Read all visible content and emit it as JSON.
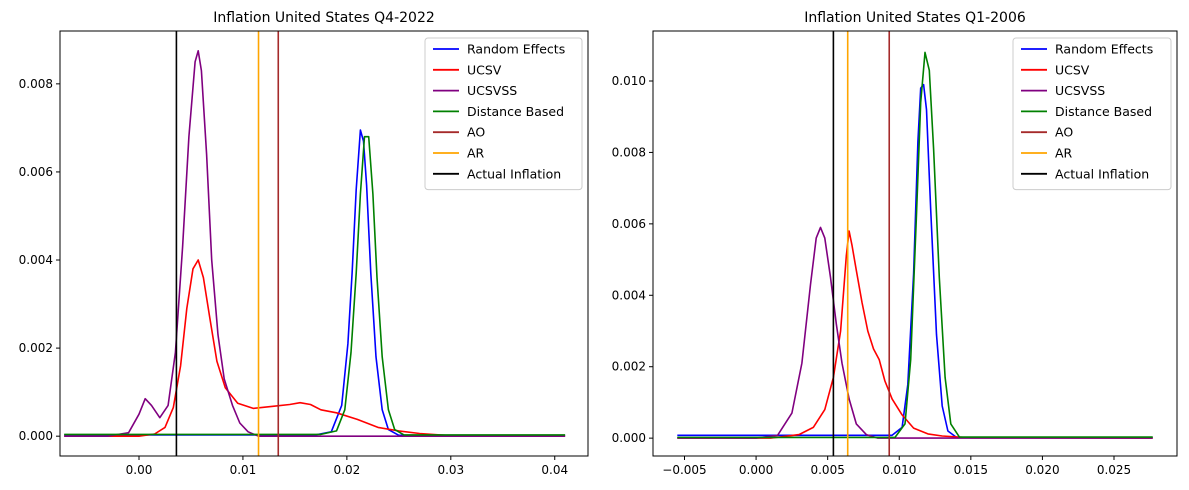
{
  "chart_data": [
    {
      "type": "line",
      "title": "Inflation United States Q4-2022",
      "xlim": [
        -0.0076,
        0.0432
      ],
      "ylim": [
        -0.00045,
        0.0092
      ],
      "xticks": [
        0.0,
        0.01,
        0.02,
        0.03,
        0.04
      ],
      "xtick_labels": [
        "0.00",
        "0.01",
        "0.02",
        "0.03",
        "0.04"
      ],
      "yticks": [
        0.0,
        0.002,
        0.004,
        0.006,
        0.008
      ],
      "ytick_labels": [
        "0.000",
        "0.002",
        "0.004",
        "0.006",
        "0.008"
      ],
      "legend_position": "top-right",
      "grid": false,
      "series": [
        {
          "name": "Random Effects",
          "color": "#0000ff",
          "points": [
            [
              -0.0072,
              3e-05
            ],
            [
              0.017,
              3e-05
            ],
            [
              0.0185,
              0.0001
            ],
            [
              0.0195,
              0.0007
            ],
            [
              0.0201,
              0.0021
            ],
            [
              0.0205,
              0.0037
            ],
            [
              0.0209,
              0.0056
            ],
            [
              0.0213,
              0.00695
            ],
            [
              0.0216,
              0.0067
            ],
            [
              0.0219,
              0.0057
            ],
            [
              0.0223,
              0.0037
            ],
            [
              0.0228,
              0.0018
            ],
            [
              0.0234,
              0.0006
            ],
            [
              0.024,
              0.00015
            ],
            [
              0.025,
              2e-05
            ],
            [
              0.041,
              2e-05
            ]
          ]
        },
        {
          "name": "UCSV",
          "color": "#ff0000",
          "points": [
            [
              -0.0072,
              0.0
            ],
            [
              0.0,
              0.0
            ],
            [
              0.0015,
              5e-05
            ],
            [
              0.0025,
              0.0002
            ],
            [
              0.0033,
              0.00065
            ],
            [
              0.004,
              0.0016
            ],
            [
              0.0046,
              0.0029
            ],
            [
              0.0052,
              0.0038
            ],
            [
              0.0057,
              0.004
            ],
            [
              0.0062,
              0.0036
            ],
            [
              0.0068,
              0.0027
            ],
            [
              0.0075,
              0.0017
            ],
            [
              0.0083,
              0.0011
            ],
            [
              0.0095,
              0.00075
            ],
            [
              0.011,
              0.00063
            ],
            [
              0.013,
              0.00068
            ],
            [
              0.0145,
              0.00072
            ],
            [
              0.0155,
              0.00076
            ],
            [
              0.0165,
              0.00072
            ],
            [
              0.0175,
              0.0006
            ],
            [
              0.019,
              0.00053
            ],
            [
              0.021,
              0.00038
            ],
            [
              0.023,
              0.0002
            ],
            [
              0.025,
              0.00012
            ],
            [
              0.027,
              6e-05
            ],
            [
              0.03,
              1e-05
            ],
            [
              0.041,
              0.0
            ]
          ]
        },
        {
          "name": "UCSVSS",
          "color": "#800080",
          "points": [
            [
              -0.0072,
              0.0
            ],
            [
              -0.003,
              0.0
            ],
            [
              -0.001,
              8e-05
            ],
            [
              0.0,
              0.0005
            ],
            [
              0.0006,
              0.00085
            ],
            [
              0.0012,
              0.0007
            ],
            [
              0.002,
              0.00042
            ],
            [
              0.0028,
              0.0007
            ],
            [
              0.0035,
              0.0019
            ],
            [
              0.0042,
              0.0043
            ],
            [
              0.0048,
              0.0068
            ],
            [
              0.0054,
              0.0085
            ],
            [
              0.0057,
              0.00875
            ],
            [
              0.006,
              0.0083
            ],
            [
              0.0065,
              0.0064
            ],
            [
              0.007,
              0.004
            ],
            [
              0.0076,
              0.0023
            ],
            [
              0.0082,
              0.0013
            ],
            [
              0.009,
              0.0007
            ],
            [
              0.0097,
              0.0003
            ],
            [
              0.0105,
              0.0001
            ],
            [
              0.0115,
              0.0
            ],
            [
              0.041,
              0.0
            ]
          ]
        },
        {
          "name": "Distance Based",
          "color": "#008000",
          "points": [
            [
              -0.0072,
              4e-05
            ],
            [
              0.0175,
              4e-05
            ],
            [
              0.019,
              0.00012
            ],
            [
              0.0198,
              0.0006
            ],
            [
              0.0204,
              0.0019
            ],
            [
              0.0209,
              0.0037
            ],
            [
              0.0213,
              0.0055
            ],
            [
              0.0217,
              0.0068
            ],
            [
              0.0221,
              0.0068
            ],
            [
              0.0225,
              0.0055
            ],
            [
              0.0229,
              0.0036
            ],
            [
              0.0234,
              0.0018
            ],
            [
              0.024,
              0.0006
            ],
            [
              0.0246,
              0.00015
            ],
            [
              0.0255,
              3e-05
            ],
            [
              0.041,
              3e-05
            ]
          ]
        },
        {
          "name": "AO",
          "color": "#a52a2a",
          "vline": 0.0134
        },
        {
          "name": "AR",
          "color": "#ffa500",
          "vline": 0.0115
        },
        {
          "name": "Actual Inflation",
          "color": "#000000",
          "vline": 0.0036
        }
      ]
    },
    {
      "type": "line",
      "title": "Inflation United States Q1-2006",
      "xlim": [
        -0.0072,
        0.0294
      ],
      "ylim": [
        -0.0005,
        0.0114
      ],
      "xticks": [
        -0.005,
        0.0,
        0.005,
        0.01,
        0.015,
        0.02,
        0.025
      ],
      "xtick_labels": [
        "−0.005",
        "0.000",
        "0.005",
        "0.010",
        "0.015",
        "0.020",
        "0.025"
      ],
      "yticks": [
        0.0,
        0.002,
        0.004,
        0.006,
        0.008,
        0.01
      ],
      "ytick_labels": [
        "0.000",
        "0.002",
        "0.004",
        "0.006",
        "0.008",
        "0.010"
      ],
      "legend_position": "top-right",
      "grid": false,
      "series": [
        {
          "name": "Random Effects",
          "color": "#0000ff",
          "points": [
            [
              -0.0055,
              8e-05
            ],
            [
              0.0095,
              8e-05
            ],
            [
              0.0102,
              0.0003
            ],
            [
              0.0106,
              0.0015
            ],
            [
              0.011,
              0.0046
            ],
            [
              0.0113,
              0.0083
            ],
            [
              0.0115,
              0.0098
            ],
            [
              0.0117,
              0.0099
            ],
            [
              0.0119,
              0.0092
            ],
            [
              0.0122,
              0.0064
            ],
            [
              0.0126,
              0.0029
            ],
            [
              0.013,
              0.0009
            ],
            [
              0.0134,
              0.0002
            ],
            [
              0.014,
              2e-05
            ],
            [
              0.0277,
              2e-05
            ]
          ]
        },
        {
          "name": "UCSV",
          "color": "#ff0000",
          "points": [
            [
              -0.0055,
              0.0
            ],
            [
              0.001,
              0.0
            ],
            [
              0.002,
              5e-05
            ],
            [
              0.003,
              0.0001
            ],
            [
              0.004,
              0.0003
            ],
            [
              0.0048,
              0.0008
            ],
            [
              0.0054,
              0.0017
            ],
            [
              0.0059,
              0.003
            ],
            [
              0.0063,
              0.0051
            ],
            [
              0.0065,
              0.0058
            ],
            [
              0.0067,
              0.0054
            ],
            [
              0.007,
              0.0047
            ],
            [
              0.0074,
              0.0038
            ],
            [
              0.0078,
              0.003
            ],
            [
              0.0082,
              0.0025
            ],
            [
              0.0086,
              0.0022
            ],
            [
              0.009,
              0.0016
            ],
            [
              0.0095,
              0.0011
            ],
            [
              0.0102,
              0.00065
            ],
            [
              0.011,
              0.00028
            ],
            [
              0.012,
              0.00012
            ],
            [
              0.013,
              6e-05
            ],
            [
              0.015,
              1e-05
            ],
            [
              0.0277,
              0.0
            ]
          ]
        },
        {
          "name": "UCSVSS",
          "color": "#800080",
          "points": [
            [
              -0.0055,
              0.0
            ],
            [
              0.0,
              0.0
            ],
            [
              0.0015,
              8e-05
            ],
            [
              0.0025,
              0.0007
            ],
            [
              0.0032,
              0.0021
            ],
            [
              0.0038,
              0.0043
            ],
            [
              0.0042,
              0.0056
            ],
            [
              0.0045,
              0.0059
            ],
            [
              0.0048,
              0.0056
            ],
            [
              0.0052,
              0.0045
            ],
            [
              0.0056,
              0.0032
            ],
            [
              0.006,
              0.0021
            ],
            [
              0.0065,
              0.0011
            ],
            [
              0.007,
              0.0004
            ],
            [
              0.0077,
              0.0001
            ],
            [
              0.0085,
              0.0
            ],
            [
              0.0277,
              0.0
            ]
          ]
        },
        {
          "name": "Distance Based",
          "color": "#008000",
          "points": [
            [
              -0.0055,
              2e-05
            ],
            [
              0.0097,
              2e-05
            ],
            [
              0.0104,
              0.0004
            ],
            [
              0.0108,
              0.0022
            ],
            [
              0.0112,
              0.0062
            ],
            [
              0.0115,
              0.0094
            ],
            [
              0.0118,
              0.0108
            ],
            [
              0.0121,
              0.0103
            ],
            [
              0.0124,
              0.0081
            ],
            [
              0.0128,
              0.0045
            ],
            [
              0.0132,
              0.0017
            ],
            [
              0.0136,
              0.0004
            ],
            [
              0.0142,
              3e-05
            ],
            [
              0.0277,
              3e-05
            ]
          ]
        },
        {
          "name": "AO",
          "color": "#a52a2a",
          "vline": 0.0093
        },
        {
          "name": "AR",
          "color": "#ffa500",
          "vline": 0.0064
        },
        {
          "name": "Actual Inflation",
          "color": "#000000",
          "vline": 0.0054
        }
      ]
    }
  ]
}
